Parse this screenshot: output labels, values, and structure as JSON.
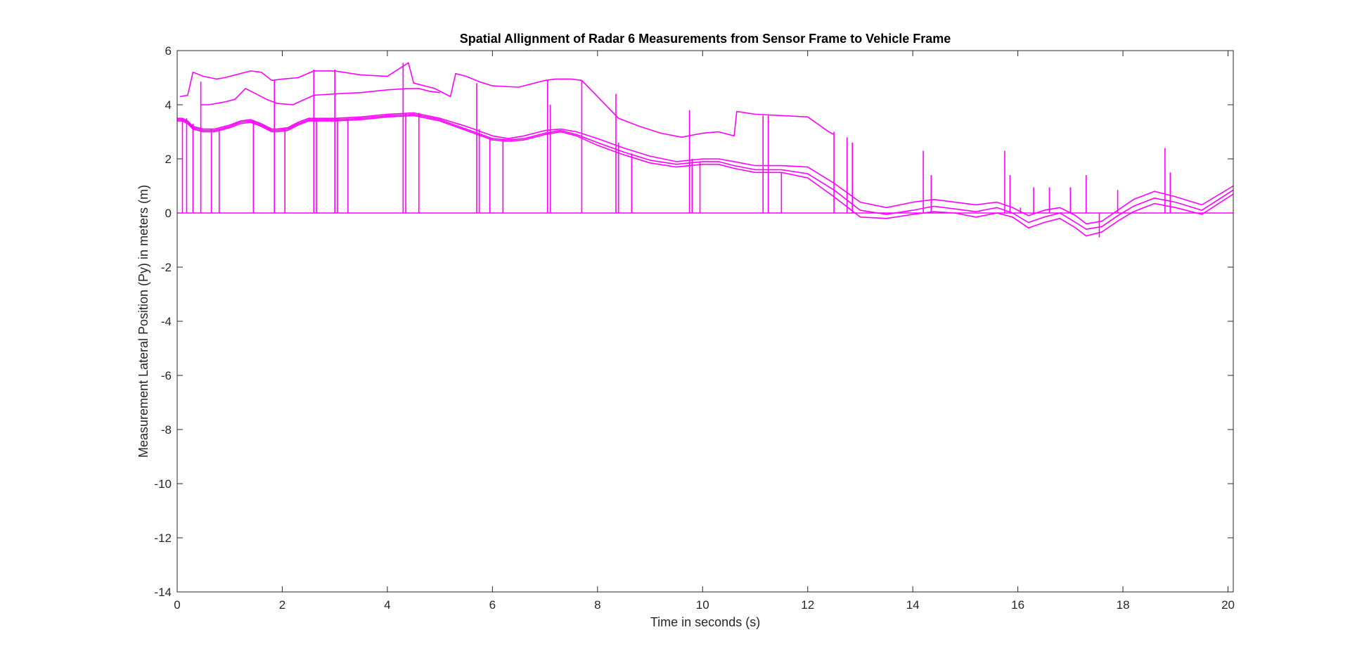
{
  "chart_data": {
    "type": "line",
    "title": "Spatial Allignment of Radar 6 Measurements from Sensor Frame to Vehicle Frame",
    "xlabel": "Time in seconds (s)",
    "ylabel": "Measurement Lateral Position (Py) in meters (m)",
    "xlim": [
      0,
      20.1
    ],
    "ylim": [
      -14,
      6
    ],
    "xticks": [
      0,
      2,
      4,
      6,
      8,
      10,
      12,
      14,
      16,
      18,
      20
    ],
    "yticks": [
      -14,
      -12,
      -10,
      -8,
      -6,
      -4,
      -2,
      0,
      2,
      4,
      6
    ],
    "grid": false,
    "legend": "none",
    "line_color": "#ff00ff",
    "series": [
      {
        "x": [
          0,
          0.1,
          0.2,
          0.3,
          0.5,
          0.7,
          1.0,
          1.2,
          1.4,
          1.6,
          1.8,
          1.9,
          2.1,
          2.3,
          2.5,
          2.7,
          3.0,
          3.5,
          4.0,
          4.5,
          5.0,
          5.5,
          6.0,
          6.3,
          6.6,
          7.0,
          7.3,
          7.6,
          8.0,
          8.5,
          9.0,
          9.5,
          10.0,
          10.3,
          10.6,
          11.0,
          11.5,
          12.0,
          12.5,
          13.0,
          13.5,
          14.0,
          14.4,
          14.8,
          15.2,
          15.6,
          15.9,
          16.2,
          16.5,
          16.8,
          17.1,
          17.3,
          17.6,
          17.9,
          18.2,
          18.6,
          19.0,
          19.5,
          20.1
        ],
        "y": [
          3.5,
          3.5,
          3.4,
          3.2,
          3.1,
          3.1,
          3.25,
          3.4,
          3.45,
          3.3,
          3.1,
          3.1,
          3.15,
          3.35,
          3.5,
          3.5,
          3.5,
          3.55,
          3.65,
          3.7,
          3.5,
          3.2,
          2.85,
          2.75,
          2.85,
          3.05,
          3.1,
          3.0,
          2.75,
          2.4,
          2.1,
          1.9,
          2.0,
          2.0,
          1.9,
          1.75,
          1.75,
          1.7,
          1.1,
          0.4,
          0.2,
          0.4,
          0.5,
          0.4,
          0.3,
          0.4,
          0.2,
          -0.1,
          0.1,
          0.2,
          -0.1,
          -0.4,
          -0.3,
          0.1,
          0.5,
          0.8,
          0.6,
          0.3,
          1.0
        ]
      },
      {
        "x": [
          0,
          0.1,
          0.2,
          0.3,
          0.5,
          0.7,
          1.0,
          1.2,
          1.4,
          1.6,
          1.8,
          1.9,
          2.1,
          2.3,
          2.5,
          2.7,
          3.0,
          3.5,
          4.0,
          4.5,
          5.0,
          5.5,
          6.0,
          6.3,
          6.6,
          7.0,
          7.3,
          7.6,
          8.0,
          8.5,
          9.0,
          9.5,
          10.0,
          10.3,
          10.6,
          11.0,
          11.5,
          12.0,
          12.5,
          13.0,
          13.5,
          14.0,
          14.4,
          14.8,
          15.2,
          15.6,
          15.9,
          16.2,
          16.5,
          16.8,
          17.1,
          17.3,
          17.6,
          17.9,
          18.2,
          18.6,
          19.0,
          19.5,
          20.1
        ],
        "y": [
          3.45,
          3.45,
          3.35,
          3.15,
          3.05,
          3.05,
          3.2,
          3.35,
          3.4,
          3.25,
          3.05,
          3.05,
          3.1,
          3.3,
          3.45,
          3.45,
          3.45,
          3.5,
          3.6,
          3.65,
          3.45,
          3.1,
          2.75,
          2.7,
          2.75,
          2.95,
          3.05,
          2.9,
          2.6,
          2.25,
          1.95,
          1.8,
          1.9,
          1.9,
          1.75,
          1.6,
          1.6,
          1.45,
          0.85,
          0.1,
          -0.05,
          0.1,
          0.25,
          0.15,
          0.05,
          0.2,
          0.0,
          -0.35,
          -0.15,
          0.0,
          -0.35,
          -0.6,
          -0.5,
          -0.1,
          0.25,
          0.55,
          0.4,
          0.1,
          0.85
        ]
      },
      {
        "x": [
          0,
          0.1,
          0.2,
          0.3,
          0.5,
          0.7,
          1.0,
          1.2,
          1.4,
          1.6,
          1.8,
          1.9,
          2.1,
          2.3,
          2.5,
          2.7,
          3.0,
          3.5,
          4.0,
          4.5,
          5.0,
          5.5,
          6.0,
          6.3,
          6.6,
          7.0,
          7.3,
          7.6,
          8.0,
          8.5,
          9.0,
          9.5,
          10.0,
          10.3,
          10.6,
          11.0,
          11.5,
          12.0,
          12.5,
          13.0,
          13.5,
          14.0,
          14.4,
          14.8,
          15.2,
          15.6,
          15.9,
          16.2,
          16.5,
          16.8,
          17.1,
          17.3,
          17.6,
          17.9,
          18.2,
          18.6,
          19.0,
          19.5,
          20.1
        ],
        "y": [
          3.4,
          3.4,
          3.3,
          3.1,
          3.0,
          3.0,
          3.15,
          3.3,
          3.35,
          3.2,
          3.0,
          3.0,
          3.05,
          3.25,
          3.4,
          3.4,
          3.4,
          3.45,
          3.55,
          3.6,
          3.4,
          3.05,
          2.7,
          2.65,
          2.7,
          2.9,
          3.0,
          2.85,
          2.5,
          2.15,
          1.85,
          1.7,
          1.8,
          1.8,
          1.65,
          1.5,
          1.5,
          1.3,
          0.6,
          -0.15,
          -0.2,
          -0.05,
          0.05,
          0.0,
          -0.15,
          0.0,
          -0.15,
          -0.55,
          -0.35,
          -0.2,
          -0.55,
          -0.85,
          -0.7,
          -0.3,
          0.05,
          0.35,
          0.2,
          -0.05,
          0.7
        ]
      },
      {
        "x": [
          0.05,
          0.2,
          0.3,
          0.5,
          0.75,
          0.9,
          1.1,
          1.4,
          1.6,
          1.8,
          2.0,
          2.3,
          2.6,
          3.0,
          3.5,
          4.0,
          4.4,
          4.5,
          4.9,
          5.2,
          5.3,
          5.5,
          5.75,
          6.0,
          6.5,
          7.0,
          7.2,
          7.5,
          7.7,
          8.4,
          8.8,
          9.2,
          9.6,
          10.0,
          10.3,
          10.6,
          10.65,
          11.0,
          11.5,
          12.0,
          12.4,
          12.5
        ],
        "y": [
          4.3,
          4.35,
          5.2,
          5.05,
          4.95,
          5.0,
          5.1,
          5.25,
          5.2,
          4.9,
          4.95,
          5.0,
          5.25,
          5.25,
          5.1,
          5.05,
          5.55,
          4.8,
          4.6,
          4.3,
          5.15,
          5.05,
          4.85,
          4.7,
          4.65,
          4.9,
          4.95,
          4.95,
          4.9,
          3.5,
          3.2,
          2.95,
          2.8,
          2.95,
          3.0,
          2.85,
          3.75,
          3.65,
          3.6,
          3.55,
          3.0,
          2.9
        ]
      },
      {
        "x": [
          0.45,
          0.6,
          0.9,
          1.1,
          1.3,
          1.5,
          1.7,
          1.9,
          2.2,
          2.6,
          3.0,
          3.5,
          4.0,
          4.4,
          4.6,
          4.8,
          5.0
        ],
        "y": [
          4.0,
          4.0,
          4.1,
          4.2,
          4.6,
          4.4,
          4.2,
          4.05,
          4.0,
          4.35,
          4.4,
          4.45,
          4.55,
          4.6,
          4.6,
          4.5,
          4.45
        ]
      },
      {
        "x": [
          0,
          20.1
        ],
        "y": [
          0,
          0
        ]
      }
    ],
    "spikes": [
      {
        "x": 0.1,
        "y": 3.5
      },
      {
        "x": 0.18,
        "y": 3.5
      },
      {
        "x": 0.3,
        "y": 3.3
      },
      {
        "x": 0.45,
        "y": 4.85
      },
      {
        "x": 0.65,
        "y": 3.1
      },
      {
        "x": 0.8,
        "y": 3.1
      },
      {
        "x": 1.45,
        "y": 3.4
      },
      {
        "x": 1.85,
        "y": 4.9
      },
      {
        "x": 2.05,
        "y": 3.1
      },
      {
        "x": 2.6,
        "y": 5.3
      },
      {
        "x": 2.65,
        "y": 3.5
      },
      {
        "x": 3.0,
        "y": 5.3
      },
      {
        "x": 3.05,
        "y": 3.5
      },
      {
        "x": 3.25,
        "y": 3.5
      },
      {
        "x": 4.3,
        "y": 5.55
      },
      {
        "x": 4.35,
        "y": 3.7
      },
      {
        "x": 4.6,
        "y": 3.7
      },
      {
        "x": 5.7,
        "y": 4.8
      },
      {
        "x": 5.75,
        "y": 3.1
      },
      {
        "x": 5.95,
        "y": 2.8
      },
      {
        "x": 6.2,
        "y": 2.7
      },
      {
        "x": 7.05,
        "y": 4.9
      },
      {
        "x": 7.1,
        "y": 4.0
      },
      {
        "x": 7.7,
        "y": 4.9
      },
      {
        "x": 8.35,
        "y": 4.4
      },
      {
        "x": 8.4,
        "y": 2.6
      },
      {
        "x": 8.65,
        "y": 2.2
      },
      {
        "x": 9.75,
        "y": 3.8
      },
      {
        "x": 9.8,
        "y": 2.0
      },
      {
        "x": 9.95,
        "y": 1.9
      },
      {
        "x": 11.15,
        "y": 3.6
      },
      {
        "x": 11.25,
        "y": 3.6
      },
      {
        "x": 11.5,
        "y": 1.5
      },
      {
        "x": 12.5,
        "y": 3.0
      },
      {
        "x": 12.75,
        "y": 2.8
      },
      {
        "x": 12.85,
        "y": 2.6
      },
      {
        "x": 14.2,
        "y": 2.3
      },
      {
        "x": 14.35,
        "y": 1.4
      },
      {
        "x": 15.75,
        "y": 2.3
      },
      {
        "x": 15.85,
        "y": 1.4
      },
      {
        "x": 16.05,
        "y": 0.2
      },
      {
        "x": 16.3,
        "y": 0.95
      },
      {
        "x": 16.6,
        "y": 0.95
      },
      {
        "x": 17.0,
        "y": 0.95
      },
      {
        "x": 17.3,
        "y": 1.4
      },
      {
        "x": 17.55,
        "y": -0.9
      },
      {
        "x": 17.9,
        "y": 0.85
      },
      {
        "x": 18.8,
        "y": 2.4
      },
      {
        "x": 18.9,
        "y": 1.5
      }
    ]
  }
}
